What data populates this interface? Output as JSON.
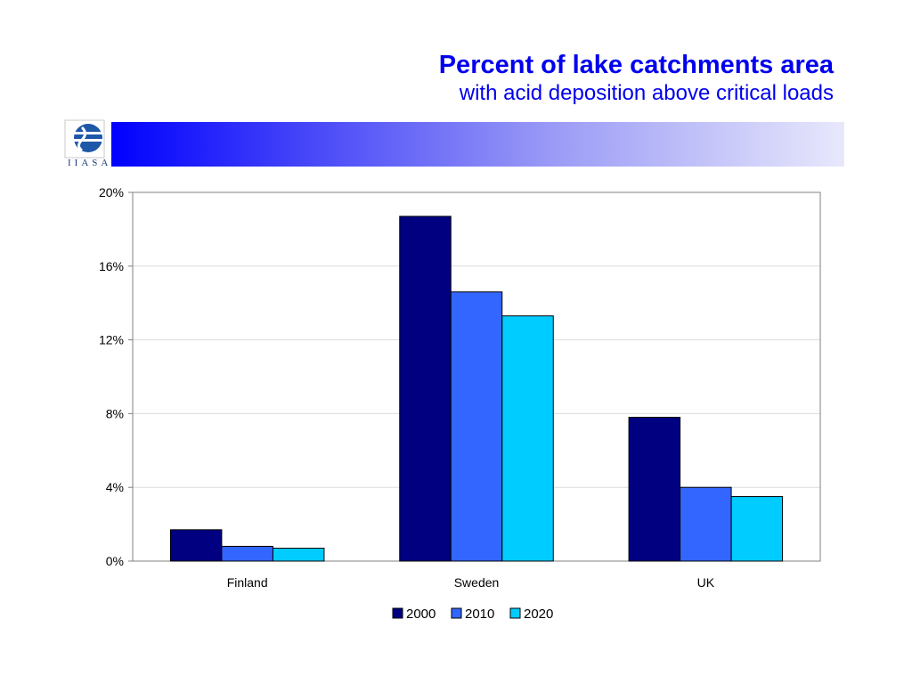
{
  "header": {
    "title": "Percent of lake catchments area",
    "subtitle": "with acid deposition above critical loads",
    "logo_text": "IIASA",
    "logo_icon": "iiasa-globe-icon",
    "banner_color_start": "#0000ff",
    "banner_color_end": "#e8e8fc"
  },
  "chart_data": {
    "type": "bar",
    "categories": [
      "Finland",
      "Sweden",
      "UK"
    ],
    "series": [
      {
        "name": "2000",
        "color": "#000080",
        "values": [
          1.7,
          18.7,
          7.8
        ]
      },
      {
        "name": "2010",
        "color": "#3366ff",
        "values": [
          0.8,
          14.6,
          4.0
        ]
      },
      {
        "name": "2020",
        "color": "#00ccff",
        "values": [
          0.7,
          13.3,
          3.5
        ]
      }
    ],
    "ylim": [
      0,
      20
    ],
    "yticks": [
      0,
      4,
      8,
      12,
      16,
      20
    ],
    "ytick_labels": [
      "0%",
      "4%",
      "8%",
      "12%",
      "16%",
      "20%"
    ],
    "grid": true,
    "legend_position": "bottom-center"
  }
}
